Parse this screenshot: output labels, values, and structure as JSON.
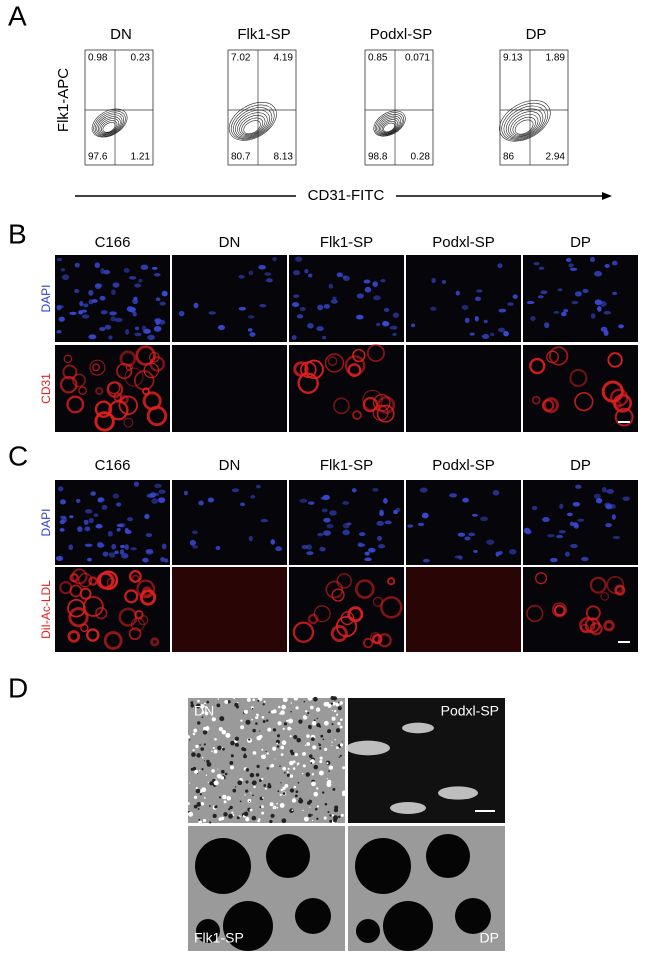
{
  "panel_a": {
    "label": "A",
    "y_axis": "Flk1-APC",
    "x_axis": "CD31-FITC",
    "plots": [
      {
        "title": "DN",
        "quadrants": [
          "0.98",
          "0.23",
          "97.6",
          "1.21"
        ]
      },
      {
        "title": "Flk1-SP",
        "quadrants": [
          "7.02",
          "4.19",
          "80.7",
          "8.13"
        ]
      },
      {
        "title": "Podxl-SP",
        "quadrants": [
          "0.85",
          "0.071",
          "98.8",
          "0.28"
        ]
      },
      {
        "title": "DP",
        "quadrants": [
          "9.13",
          "1.89",
          "86",
          "2.94"
        ]
      }
    ]
  },
  "panel_b": {
    "label": "B",
    "columns": [
      "C166",
      "DN",
      "Flk1-SP",
      "Podxl-SP",
      "DP"
    ],
    "rows": [
      "DAPI",
      "CD31"
    ]
  },
  "panel_c": {
    "label": "C",
    "columns": [
      "C166",
      "DN",
      "Flk1-SP",
      "Podxl-SP",
      "DP"
    ],
    "rows": [
      "DAPI",
      "DiI-Ac-LDL"
    ]
  },
  "panel_d": {
    "label": "D",
    "images": [
      "DN",
      "Podxl-SP",
      "Flk1-SP",
      "DP"
    ]
  }
}
